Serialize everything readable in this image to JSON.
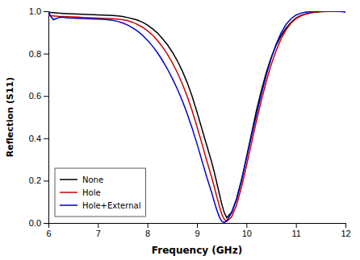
{
  "chart_data": {
    "type": "line",
    "xlabel": "Frequency (GHz)",
    "ylabel": "Reflection (S11)",
    "xlim": [
      6,
      12
    ],
    "ylim": [
      0,
      1.0
    ],
    "xticks": [
      6,
      7,
      8,
      9,
      10,
      11,
      12
    ],
    "yticks": [
      {
        "value": 0.0,
        "label": "0.0"
      },
      0.2,
      0.4,
      0.6,
      0.8,
      {
        "value": 1.0,
        "label": "1.0"
      }
    ],
    "grid": false,
    "legend": "lower left",
    "series": [
      {
        "name": "None",
        "color": "#000000",
        "x": [
          6.0,
          6.1,
          6.2,
          6.3,
          6.4,
          6.5,
          6.6,
          6.7,
          6.8,
          6.9,
          7.0,
          7.1,
          7.2,
          7.3,
          7.4,
          7.5,
          7.6,
          7.7,
          7.8,
          7.9,
          8.0,
          8.1,
          8.2,
          8.3,
          8.4,
          8.5,
          8.6,
          8.7,
          8.8,
          8.9,
          9.0,
          9.1,
          9.2,
          9.3,
          9.35,
          9.4,
          9.45,
          9.5,
          9.55,
          9.6,
          9.7,
          9.8,
          9.9,
          10.0,
          10.1,
          10.2,
          10.3,
          10.4,
          10.5,
          10.6,
          10.7,
          10.8,
          10.9,
          11.0,
          11.1,
          11.2,
          11.3,
          11.4,
          11.5,
          11.6,
          11.7,
          11.8,
          11.9,
          12.0
        ],
        "values": [
          0.995,
          0.993,
          0.991,
          0.99,
          0.989,
          0.988,
          0.987,
          0.986,
          0.985,
          0.984,
          0.983,
          0.982,
          0.981,
          0.98,
          0.978,
          0.975,
          0.97,
          0.965,
          0.958,
          0.948,
          0.935,
          0.918,
          0.898,
          0.872,
          0.843,
          0.808,
          0.768,
          0.72,
          0.665,
          0.6,
          0.525,
          0.445,
          0.365,
          0.285,
          0.24,
          0.19,
          0.14,
          0.09,
          0.05,
          0.025,
          0.05,
          0.11,
          0.2,
          0.31,
          0.42,
          0.53,
          0.625,
          0.71,
          0.782,
          0.84,
          0.885,
          0.92,
          0.948,
          0.968,
          0.98,
          0.988,
          0.993,
          0.996,
          0.998,
          0.999,
          1.0,
          1.0,
          1.0,
          1.0
        ]
      },
      {
        "name": "Hole",
        "color": "#cc0000",
        "x": [
          6.0,
          6.1,
          6.2,
          6.3,
          6.4,
          6.5,
          6.6,
          6.7,
          6.8,
          6.9,
          7.0,
          7.1,
          7.2,
          7.3,
          7.4,
          7.5,
          7.6,
          7.7,
          7.8,
          7.9,
          8.0,
          8.1,
          8.2,
          8.3,
          8.4,
          8.5,
          8.6,
          8.7,
          8.8,
          8.9,
          9.0,
          9.1,
          9.2,
          9.3,
          9.35,
          9.4,
          9.45,
          9.5,
          9.55,
          9.6,
          9.7,
          9.8,
          9.9,
          10.0,
          10.1,
          10.2,
          10.3,
          10.4,
          10.5,
          10.6,
          10.7,
          10.8,
          10.9,
          11.0,
          11.1,
          11.2,
          11.3,
          11.4,
          11.5,
          11.6,
          11.7,
          11.8,
          11.9,
          12.0
        ],
        "values": [
          0.98,
          0.978,
          0.976,
          0.975,
          0.974,
          0.973,
          0.972,
          0.971,
          0.97,
          0.969,
          0.968,
          0.967,
          0.966,
          0.965,
          0.963,
          0.96,
          0.955,
          0.948,
          0.938,
          0.925,
          0.908,
          0.888,
          0.863,
          0.833,
          0.798,
          0.758,
          0.712,
          0.66,
          0.6,
          0.532,
          0.455,
          0.375,
          0.293,
          0.213,
          0.17,
          0.125,
          0.082,
          0.042,
          0.018,
          0.008,
          0.028,
          0.085,
          0.17,
          0.27,
          0.375,
          0.48,
          0.578,
          0.668,
          0.748,
          0.815,
          0.87,
          0.912,
          0.944,
          0.965,
          0.978,
          0.987,
          0.992,
          0.996,
          0.998,
          0.999,
          1.0,
          1.0,
          1.0,
          0.998
        ]
      },
      {
        "name": "Hole+External",
        "color": "#0000cc",
        "x": [
          6.0,
          6.05,
          6.1,
          6.15,
          6.2,
          6.25,
          6.3,
          6.35,
          6.4,
          6.5,
          6.6,
          6.7,
          6.8,
          6.9,
          7.0,
          7.1,
          7.2,
          7.3,
          7.4,
          7.5,
          7.6,
          7.7,
          7.8,
          7.9,
          8.0,
          8.1,
          8.2,
          8.3,
          8.4,
          8.5,
          8.6,
          8.7,
          8.8,
          8.9,
          9.0,
          9.1,
          9.2,
          9.3,
          9.35,
          9.4,
          9.45,
          9.5,
          9.55,
          9.6,
          9.7,
          9.8,
          9.9,
          10.0,
          10.1,
          10.2,
          10.3,
          10.4,
          10.5,
          10.6,
          10.7,
          10.8,
          10.9,
          11.0,
          11.1,
          11.2,
          11.3,
          11.4,
          11.5,
          11.6,
          11.7,
          11.8,
          11.9,
          12.0
        ],
        "values": [
          0.998,
          0.975,
          0.96,
          0.965,
          0.97,
          0.972,
          0.971,
          0.97,
          0.969,
          0.968,
          0.967,
          0.966,
          0.965,
          0.964,
          0.963,
          0.962,
          0.96,
          0.957,
          0.952,
          0.945,
          0.935,
          0.922,
          0.906,
          0.887,
          0.863,
          0.836,
          0.805,
          0.769,
          0.729,
          0.684,
          0.635,
          0.58,
          0.518,
          0.45,
          0.375,
          0.295,
          0.215,
          0.142,
          0.1,
          0.062,
          0.03,
          0.008,
          0.002,
          0.01,
          0.048,
          0.115,
          0.205,
          0.305,
          0.408,
          0.51,
          0.608,
          0.698,
          0.778,
          0.845,
          0.898,
          0.938,
          0.965,
          0.982,
          0.991,
          0.996,
          0.998,
          0.999,
          1.0,
          1.0,
          1.0,
          1.0,
          0.999,
          0.996
        ]
      }
    ]
  }
}
